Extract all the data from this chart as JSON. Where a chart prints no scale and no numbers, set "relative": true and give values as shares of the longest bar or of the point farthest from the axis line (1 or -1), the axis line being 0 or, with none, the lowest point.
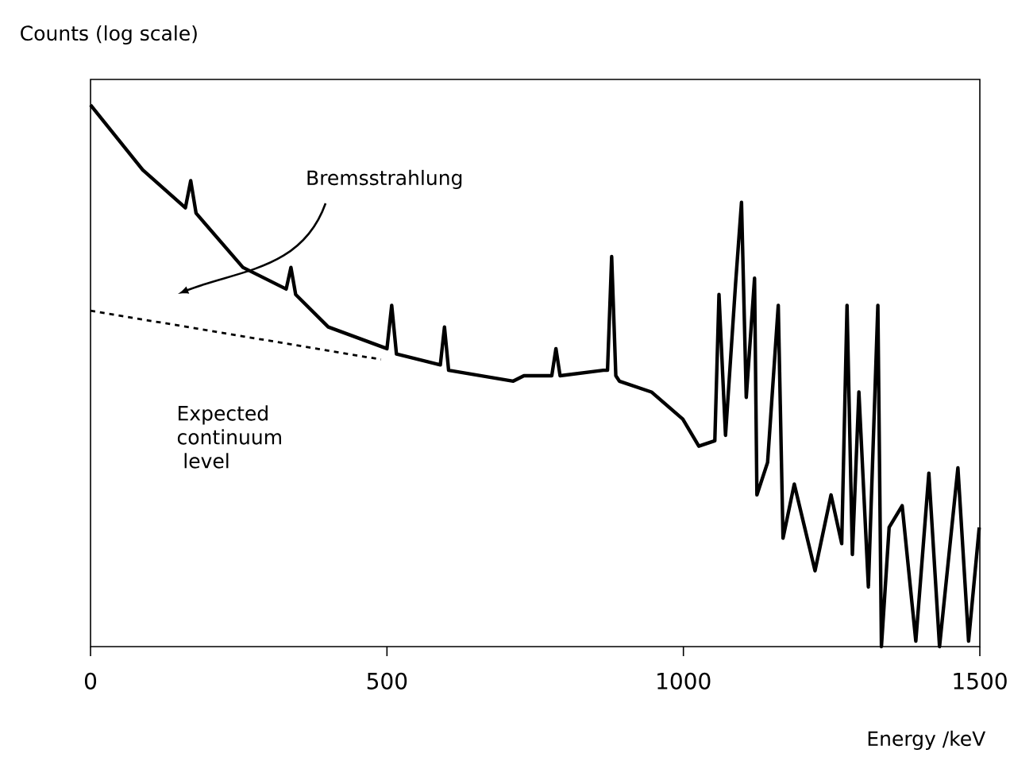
{
  "chart_data": {
    "type": "line",
    "relative": true,
    "xlabel": "Energy /keV",
    "tick_labels": "x",
    "xlim": [
      0,
      1500
    ],
    "xticks": [
      0,
      500,
      1000,
      1500
    ],
    "annotations": [
      "Bremsstrahlung",
      "Expected continuum level",
      "Counts (log scale)"
    ],
    "series": [
      {
        "color": "#000000",
        "x": [
          0,
          88,
          160,
          169,
          178,
          257,
          330,
          338,
          346,
          401,
          500,
          508,
          516,
          590,
          597,
          604,
          713,
          731,
          778,
          785,
          792,
          865,
          872,
          879,
          886,
          892,
          946,
          999,
          1026,
          1053,
          1060,
          1071,
          1088,
          1098,
          1106,
          1120,
          1124,
          1142,
          1160,
          1168,
          1187,
          1222,
          1249,
          1267,
          1276,
          1285,
          1296,
          1312,
          1328,
          1334,
          1347,
          1369,
          1392,
          1414,
          1432,
          1463,
          1481,
          1499
        ],
        "values": [
          1,
          0.88,
          0.81,
          0.86,
          0.8,
          0.7,
          0.66,
          0.7,
          0.65,
          0.59,
          0.55,
          0.63,
          0.54,
          0.52,
          0.59,
          0.51,
          0.49,
          0.5,
          0.5,
          0.55,
          0.5,
          0.51,
          0.51,
          0.72,
          0.5,
          0.49,
          0.47,
          0.42,
          0.37,
          0.38,
          0.65,
          0.39,
          0.67,
          0.82,
          0.46,
          0.68,
          0.28,
          0.34,
          0.63,
          0.2,
          0.3,
          0.14,
          0.28,
          0.19,
          0.63,
          0.17,
          0.47,
          0.11,
          0.63,
          0,
          0.22,
          0.26,
          0.01,
          0.32,
          0,
          0.33,
          0.01,
          0.22
        ]
      },
      {
        "type": "line",
        "line_style": "dashed",
        "color": "#000000",
        "x": [
          0,
          490
        ],
        "values": [
          0.62,
          0.53
        ]
      }
    ]
  }
}
